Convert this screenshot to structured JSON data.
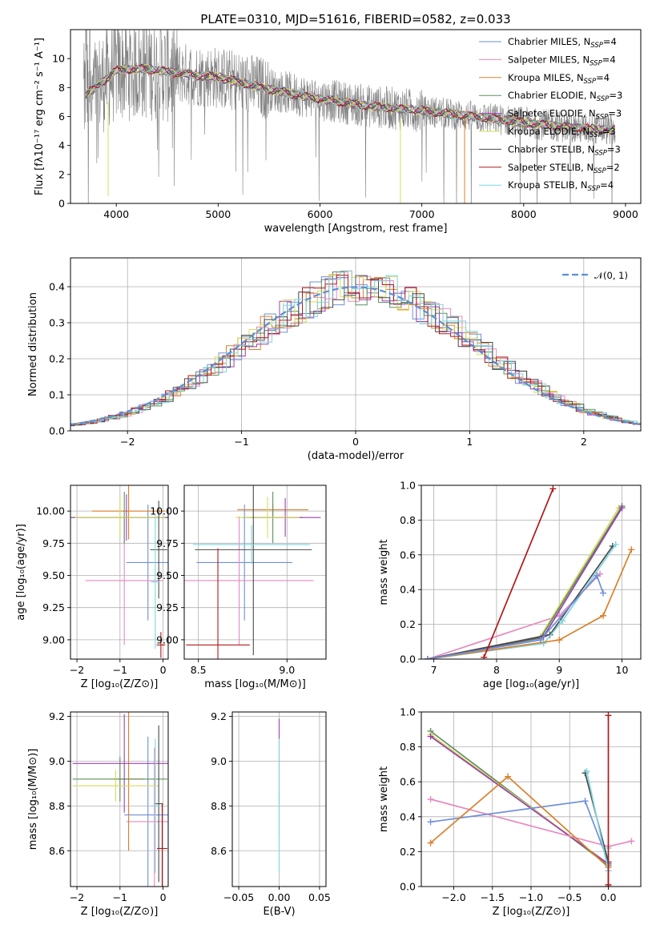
{
  "palette": {
    "Chabrier MILES": "#6f8fd8",
    "Salpeter MILES": "#e58ac0",
    "Kroupa MILES": "#d9802a",
    "Chabrier ELODIE": "#5d8f5d",
    "Salpeter ELODIE": "#9b40b0",
    "Kroupa ELODIE": "#d7dc5a",
    "Chabrier STELIB": "#4a4a4a",
    "Salpeter STELIB": "#b01818",
    "Kroupa STELIB": "#7fd6de",
    "data": "#808080",
    "normal": "#5b8fd6",
    "grid": "#b0b0b0"
  },
  "chart_data": [
    {
      "id": "spectrum",
      "type": "line",
      "title": "PLATE=0310, MJD=51616, FIBERID=0582, z=0.033",
      "xlabel": "wavelength [Angstrom, rest frame]",
      "ylabel": "Flux [fλ10⁻¹⁷ erg cm⁻² s⁻¹ A⁻¹]",
      "xlim": [
        3550,
        9150
      ],
      "ylim": [
        0,
        12
      ],
      "xticks": [
        "4000",
        "5000",
        "6000",
        "7000",
        "8000",
        "9000"
      ],
      "yticks": [
        "0",
        "2",
        "4",
        "6",
        "8",
        "10"
      ],
      "grid": false,
      "legend_position": "top-right",
      "model_continuum": {
        "x": [
          3700,
          3850,
          4000,
          4300,
          4600,
          5000,
          5500,
          6000,
          6500,
          7000,
          7500,
          8000,
          8500,
          8900
        ],
        "y": [
          7.5,
          8.3,
          9.2,
          9.3,
          9.0,
          8.7,
          7.9,
          7.2,
          6.7,
          6.4,
          6.0,
          5.6,
          5.2,
          5.1
        ]
      },
      "legend": [
        {
          "label": "Chabrier MILES, N",
          "sub": "SSP",
          "suffix": "=4",
          "key": "Chabrier MILES"
        },
        {
          "label": "Salpeter MILES, N",
          "sub": "SSP",
          "suffix": "=4",
          "key": "Salpeter MILES"
        },
        {
          "label": "Kroupa MILES, N",
          "sub": "SSP",
          "suffix": "=4",
          "key": "Kroupa MILES"
        },
        {
          "label": "Chabrier ELODIE, N",
          "sub": "SSP",
          "suffix": "=3",
          "key": "Chabrier ELODIE"
        },
        {
          "label": "Salpeter ELODIE, N",
          "sub": "SSP",
          "suffix": "=3",
          "key": "Salpeter ELODIE"
        },
        {
          "label": "Kroupa ELODIE, N",
          "sub": "SSP",
          "suffix": "=3",
          "key": "Kroupa ELODIE"
        },
        {
          "label": "Chabrier STELIB, N",
          "sub": "SSP",
          "suffix": "=3",
          "key": "Chabrier STELIB"
        },
        {
          "label": "Salpeter STELIB, N",
          "sub": "SSP",
          "suffix": "=2",
          "key": "Salpeter STELIB"
        },
        {
          "label": "Kroupa STELIB, N",
          "sub": "SSP",
          "suffix": "=4",
          "key": "Kroupa STELIB"
        }
      ]
    },
    {
      "id": "residuals",
      "type": "line",
      "xlabel": "(data-model)/error",
      "ylabel": "Normed distribution",
      "xlim": [
        -2.5,
        2.5
      ],
      "ylim": [
        0,
        0.48
      ],
      "xticks": [
        "−2",
        "−1",
        "0",
        "1",
        "2"
      ],
      "yticks": [
        "0.0",
        "0.1",
        "0.2",
        "0.3",
        "0.4"
      ],
      "grid": true,
      "legend_position": "top-right",
      "normal_label": "𝒩(0, 1)"
    },
    {
      "id": "age_vs_Z",
      "type": "scatter",
      "xlabel": "Z [log₁₀(Z/Z⊙)]",
      "ylabel": "age  [log₁₀(age/yr)]",
      "xlim": [
        -2.15,
        0.12
      ],
      "ylim": [
        8.85,
        10.2
      ],
      "xticks": [
        "−2",
        "−1",
        "0"
      ],
      "yticks": [
        "9.00",
        "9.25",
        "9.50",
        "9.75",
        "10.00"
      ],
      "points": [
        {
          "key": "Chabrier MILES",
          "x": -0.35,
          "y": 9.6,
          "xerr": 0.5,
          "yerr": 0.45
        },
        {
          "key": "Salpeter MILES",
          "x": -0.9,
          "y": 9.46,
          "xerr": 0.9,
          "yerr": 0.5
        },
        {
          "key": "Kroupa MILES",
          "x": -0.8,
          "y": 10.0,
          "xerr": 0.85,
          "yerr": 0.22
        },
        {
          "key": "Chabrier ELODIE",
          "x": -0.9,
          "y": 9.95,
          "xerr": 1.2,
          "yerr": 0.2
        },
        {
          "key": "Salpeter ELODIE",
          "x": -0.85,
          "y": 9.95,
          "xerr": 1.3,
          "yerr": 0.18
        },
        {
          "key": "Kroupa ELODIE",
          "x": -1.0,
          "y": 9.95,
          "xerr": 1.05,
          "yerr": 0.16
        },
        {
          "key": "Chabrier STELIB",
          "x": -0.1,
          "y": 9.7,
          "xerr": 0.2,
          "yerr": 0.38
        },
        {
          "key": "Salpeter STELIB",
          "x": -0.05,
          "y": 8.96,
          "xerr": 0.1,
          "yerr": 0.1
        },
        {
          "key": "Kroupa STELIB",
          "x": -0.18,
          "y": 9.45,
          "xerr": 0.1,
          "yerr": 0.52
        }
      ]
    },
    {
      "id": "age_vs_mass",
      "type": "scatter",
      "xlabel": "mass [log₁₀(M/M⊙)]",
      "ylabel": "",
      "xlim": [
        8.42,
        9.22
      ],
      "ylim": [
        8.85,
        10.2
      ],
      "xticks": [
        "8.5",
        "9.0"
      ],
      "yticks": [
        "9.00",
        "9.25",
        "9.50",
        "9.75",
        "10.00"
      ],
      "points": [
        {
          "key": "Chabrier MILES",
          "x": 8.76,
          "y": 9.6,
          "xerr": 0.27,
          "yerr": 0.45
        },
        {
          "key": "Salpeter MILES",
          "x": 8.73,
          "y": 9.46,
          "xerr": 0.42,
          "yerr": 0.5
        },
        {
          "key": "Kroupa MILES",
          "x": 8.92,
          "y": 10.01,
          "xerr": 0.2,
          "yerr": 0.05
        },
        {
          "key": "Chabrier ELODIE",
          "x": 8.92,
          "y": 9.95,
          "xerr": 0.17,
          "yerr": 0.2
        },
        {
          "key": "Salpeter ELODIE",
          "x": 8.99,
          "y": 9.95,
          "xerr": 0.2,
          "yerr": 0.15
        },
        {
          "key": "Kroupa ELODIE",
          "x": 8.89,
          "y": 9.95,
          "xerr": 0.18,
          "yerr": 0.16
        },
        {
          "key": "Chabrier STELIB",
          "x": 8.81,
          "y": 9.7,
          "xerr": 0.33,
          "yerr": 0.82
        },
        {
          "key": "Salpeter STELIB",
          "x": 8.61,
          "y": 8.96,
          "xerr": 0.18,
          "yerr": 0.75
        },
        {
          "key": "Kroupa STELIB",
          "x": 8.8,
          "y": 9.74,
          "xerr": 0.33,
          "yerr": 0.15
        }
      ]
    },
    {
      "id": "weight_vs_age",
      "type": "line",
      "xlabel": "age  [log₁₀(age/yr)]",
      "ylabel": "mass weight",
      "xlim": [
        6.8,
        10.3
      ],
      "ylim": [
        0,
        1.0
      ],
      "xticks": [
        "7",
        "8",
        "9",
        "10"
      ],
      "yticks": [
        "0.0",
        "0.2",
        "0.4",
        "0.6",
        "0.8",
        "1.0"
      ],
      "grid": true,
      "series": [
        {
          "key": "Salpeter MILES",
          "x": [
            6.9,
            9.0,
            9.65
          ],
          "y": [
            0.0,
            0.25,
            0.49
          ]
        },
        {
          "key": "Kroupa ELODIE",
          "x": [
            6.9,
            8.7,
            9.95
          ],
          "y": [
            0.0,
            0.13,
            0.87
          ]
        },
        {
          "key": "Chabrier ELODIE",
          "x": [
            6.9,
            8.7,
            10.0
          ],
          "y": [
            0.0,
            0.12,
            0.88
          ]
        },
        {
          "key": "Salpeter ELODIE",
          "x": [
            6.9,
            8.75,
            10.0
          ],
          "y": [
            0.0,
            0.13,
            0.87
          ]
        },
        {
          "key": "Chabrier STELIB",
          "x": [
            6.9,
            8.85,
            9.85
          ],
          "y": [
            0.0,
            0.14,
            0.65
          ]
        },
        {
          "key": "Kroupa STELIB",
          "x": [
            6.9,
            8.75,
            9.05,
            9.9
          ],
          "y": [
            0.0,
            0.09,
            0.22,
            0.66
          ]
        },
        {
          "key": "Kroupa MILES",
          "x": [
            6.9,
            9.0,
            9.7,
            10.15
          ],
          "y": [
            0.0,
            0.11,
            0.25,
            0.63
          ]
        },
        {
          "key": "Chabrier MILES",
          "x": [
            6.9,
            8.7,
            9.6,
            9.7
          ],
          "y": [
            0.0,
            0.11,
            0.48,
            0.38
          ]
        },
        {
          "key": "Salpeter STELIB",
          "x": [
            7.8,
            8.9
          ],
          "y": [
            0.01,
            0.98
          ]
        }
      ]
    },
    {
      "id": "mass_vs_Z",
      "type": "scatter",
      "xlabel": "Z [log₁₀(Z/Z⊙)]",
      "ylabel": "mass [log₁₀(M/M⊙)]",
      "xlim": [
        -2.15,
        0.12
      ],
      "ylim": [
        8.44,
        9.22
      ],
      "xticks": [
        "−2",
        "−1",
        "0"
      ],
      "yticks": [
        "8.6",
        "8.8",
        "9.0",
        "9.2"
      ],
      "points": [
        {
          "key": "Chabrier MILES",
          "x": -0.35,
          "y": 8.76,
          "xerr": 0.55,
          "yerr": 0.35
        },
        {
          "key": "Salpeter MILES",
          "x": -0.2,
          "y": 8.73,
          "xerr": 0.65,
          "yerr": 0.33
        },
        {
          "key": "Kroupa MILES",
          "x": -0.8,
          "y": 8.92,
          "xerr": 0.35,
          "yerr": 0.32
        },
        {
          "key": "Chabrier ELODIE",
          "x": -1.0,
          "y": 8.92,
          "xerr": 1.1,
          "yerr": 0.1
        },
        {
          "key": "Salpeter ELODIE",
          "x": -0.9,
          "y": 8.99,
          "xerr": 1.2,
          "yerr": 0.22
        },
        {
          "key": "Kroupa ELODIE",
          "x": -1.1,
          "y": 8.89,
          "xerr": 1.0,
          "yerr": 0.07
        },
        {
          "key": "Chabrier STELIB",
          "x": -0.1,
          "y": 8.81,
          "xerr": 0.1,
          "yerr": 0.35
        },
        {
          "key": "Salpeter STELIB",
          "x": -0.02,
          "y": 8.61,
          "xerr": 0.12,
          "yerr": 0.2
        },
        {
          "key": "Kroupa STELIB",
          "x": -0.18,
          "y": 8.8,
          "xerr": 0.1,
          "yerr": 0.3
        }
      ]
    },
    {
      "id": "mass_vs_ebv",
      "type": "scatter",
      "xlabel": "E(B-V)",
      "ylabel": "",
      "xlim": [
        -0.058,
        0.058
      ],
      "ylim": [
        8.44,
        9.22
      ],
      "xticks": [
        "−0.05",
        "0.00",
        "0.05"
      ],
      "yticks": [
        "8.6",
        "8.8",
        "9.0",
        "9.2"
      ],
      "points": [
        {
          "key": "Salpeter ELODIE",
          "x": 0.0,
          "y": 9.0,
          "xerr": 0.0,
          "yerr": 0.19
        },
        {
          "key": "Chabrier MILES",
          "x": 0.0,
          "y": 8.76,
          "xerr": 0.0,
          "yerr": 0.1
        },
        {
          "key": "Kroupa STELIB",
          "x": 0.0,
          "y": 8.8,
          "xerr": 0.0,
          "yerr": 0.3
        }
      ]
    },
    {
      "id": "weight_vs_Z",
      "type": "line",
      "xlabel": "Z [log₁₀(Z/Z⊙)]",
      "ylabel": "mass weight",
      "xlim": [
        -2.42,
        0.42
      ],
      "ylim": [
        0,
        1.0
      ],
      "xticks": [
        "−2.0",
        "−1.5",
        "−1.0",
        "−0.5",
        "0.0"
      ],
      "yticks": [
        "0.0",
        "0.2",
        "0.4",
        "0.6",
        "0.8",
        "1.0"
      ],
      "grid": true,
      "series": [
        {
          "key": "Chabrier ELODIE",
          "x": [
            -2.3,
            0.0
          ],
          "y": [
            0.89,
            0.12
          ]
        },
        {
          "key": "Kroupa ELODIE",
          "x": [
            -2.3,
            0.0
          ],
          "y": [
            0.87,
            0.13
          ]
        },
        {
          "key": "Salpeter ELODIE",
          "x": [
            -2.3,
            0.0
          ],
          "y": [
            0.86,
            0.13
          ]
        },
        {
          "key": "Salpeter MILES",
          "x": [
            -2.3,
            0.0,
            0.3
          ],
          "y": [
            0.5,
            0.23,
            0.26
          ]
        },
        {
          "key": "Chabrier MILES",
          "x": [
            -2.3,
            -0.3,
            0.0
          ],
          "y": [
            0.37,
            0.49,
            0.14
          ]
        },
        {
          "key": "Kroupa MILES",
          "x": [
            -2.3,
            -1.3,
            0.0
          ],
          "y": [
            0.25,
            0.63,
            0.11
          ]
        },
        {
          "key": "Chabrier STELIB",
          "x": [
            -0.3,
            0.0,
            0.0
          ],
          "y": [
            0.65,
            0.14,
            0.0
          ]
        },
        {
          "key": "Kroupa STELIB",
          "x": [
            -0.28,
            0.0,
            0.0
          ],
          "y": [
            0.66,
            0.09,
            0.22
          ]
        },
        {
          "key": "Salpeter STELIB",
          "x": [
            0.0,
            0.0
          ],
          "y": [
            0.01,
            0.98
          ]
        }
      ]
    }
  ]
}
